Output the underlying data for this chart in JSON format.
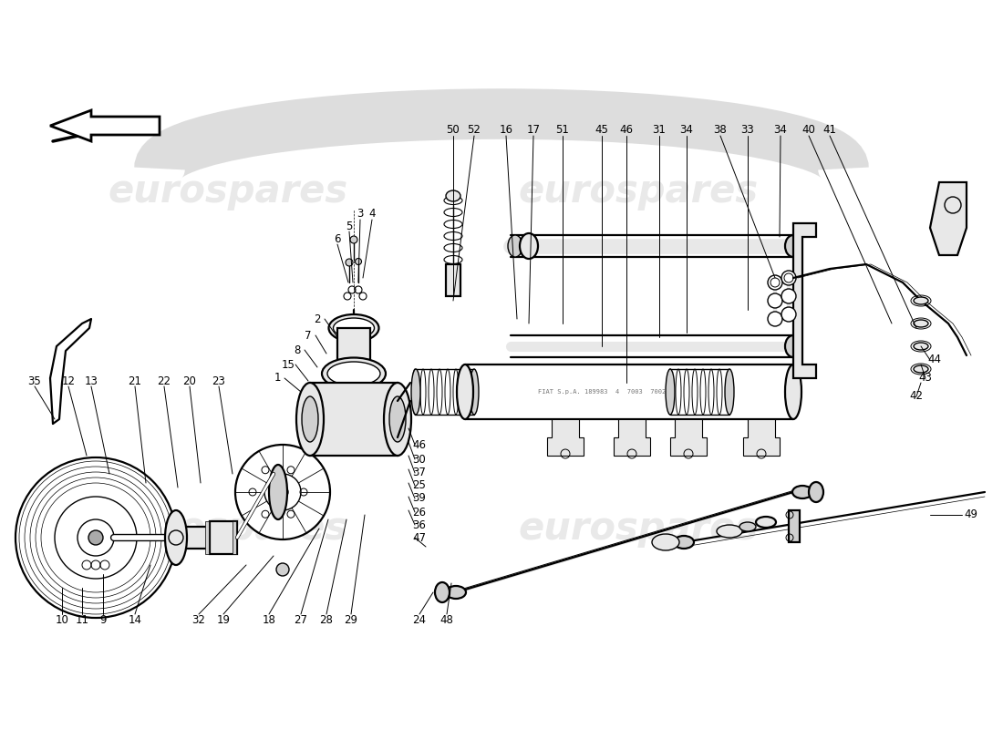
{
  "bg_color": "#ffffff",
  "line_color": "#000000",
  "watermark_text": "eurospares",
  "watermark_color": "#c8c8c8",
  "watermark_alpha": 0.4,
  "fig_width": 11.0,
  "fig_height": 8.0,
  "dpi": 100,
  "label_fontsize": 8.5,
  "label_color": "#000000",
  "lw_main": 1.6,
  "lw_med": 1.0,
  "lw_thin": 0.7
}
